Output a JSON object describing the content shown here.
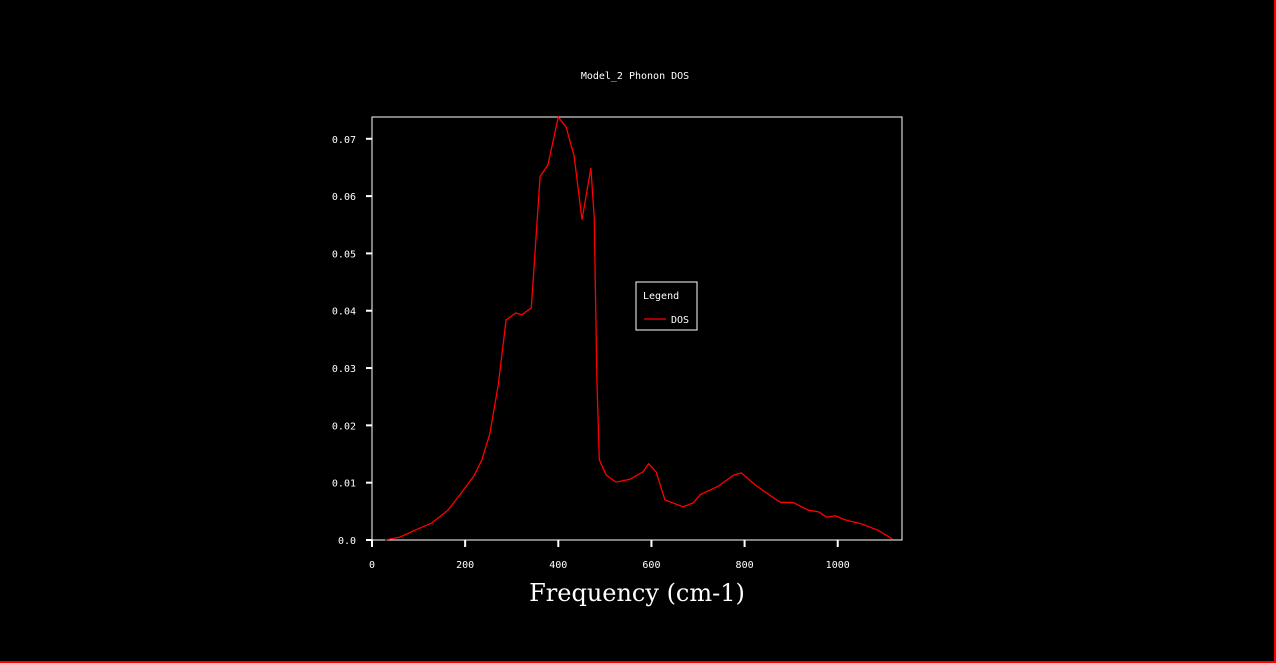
{
  "chart_data": {
    "type": "line",
    "title": "Model_2 Phonon DOS",
    "xlabel": "Frequency (cm-1)",
    "ylabel": "",
    "xlim": [
      0,
      1138
    ],
    "ylim": [
      0,
      0.0738
    ],
    "xticks": [
      0,
      200,
      400,
      600,
      800,
      1000
    ],
    "xtick_labels": [
      "0",
      "200",
      "400",
      "600",
      "800",
      "1000"
    ],
    "yticks": [
      0,
      0.01,
      0.02,
      0.03,
      0.04,
      0.05,
      0.06,
      0.07
    ],
    "ytick_labels": [
      "0.0",
      "0.01",
      "0.02",
      "0.03",
      "0.04",
      "0.05",
      "0.06",
      "0.07"
    ],
    "grid": false,
    "legend": {
      "title": "Legend",
      "placement": "center-right"
    },
    "series": [
      {
        "name": "DOS",
        "color": "#ff0000",
        "x": [
          28,
          60,
          92,
          129,
          163,
          185,
          219,
          236,
          253,
          271,
          288,
          309,
          322,
          342,
          361,
          378,
          400,
          417,
          434,
          451,
          470,
          477,
          483,
          488,
          503,
          524,
          554,
          582,
          594,
          610,
          629,
          668,
          690,
          705,
          744,
          776,
          793,
          823,
          856,
          877,
          905,
          937,
          959,
          976,
          995,
          1016,
          1052,
          1087,
          1117
        ],
        "y": [
          0,
          0.0005,
          0.0017,
          0.003,
          0.0052,
          0.0075,
          0.0112,
          0.014,
          0.0185,
          0.027,
          0.0384,
          0.0396,
          0.0393,
          0.0405,
          0.0634,
          0.0655,
          0.0738,
          0.072,
          0.067,
          0.0559,
          0.0649,
          0.0562,
          0.028,
          0.014,
          0.0113,
          0.0101,
          0.0106,
          0.0119,
          0.0133,
          0.0119,
          0.007,
          0.0058,
          0.0065,
          0.0079,
          0.0094,
          0.0113,
          0.0117,
          0.0096,
          0.0077,
          0.0066,
          0.0065,
          0.0052,
          0.0049,
          0.004,
          0.0042,
          0.0035,
          0.0028,
          0.0017,
          0.0002
        ]
      }
    ]
  }
}
